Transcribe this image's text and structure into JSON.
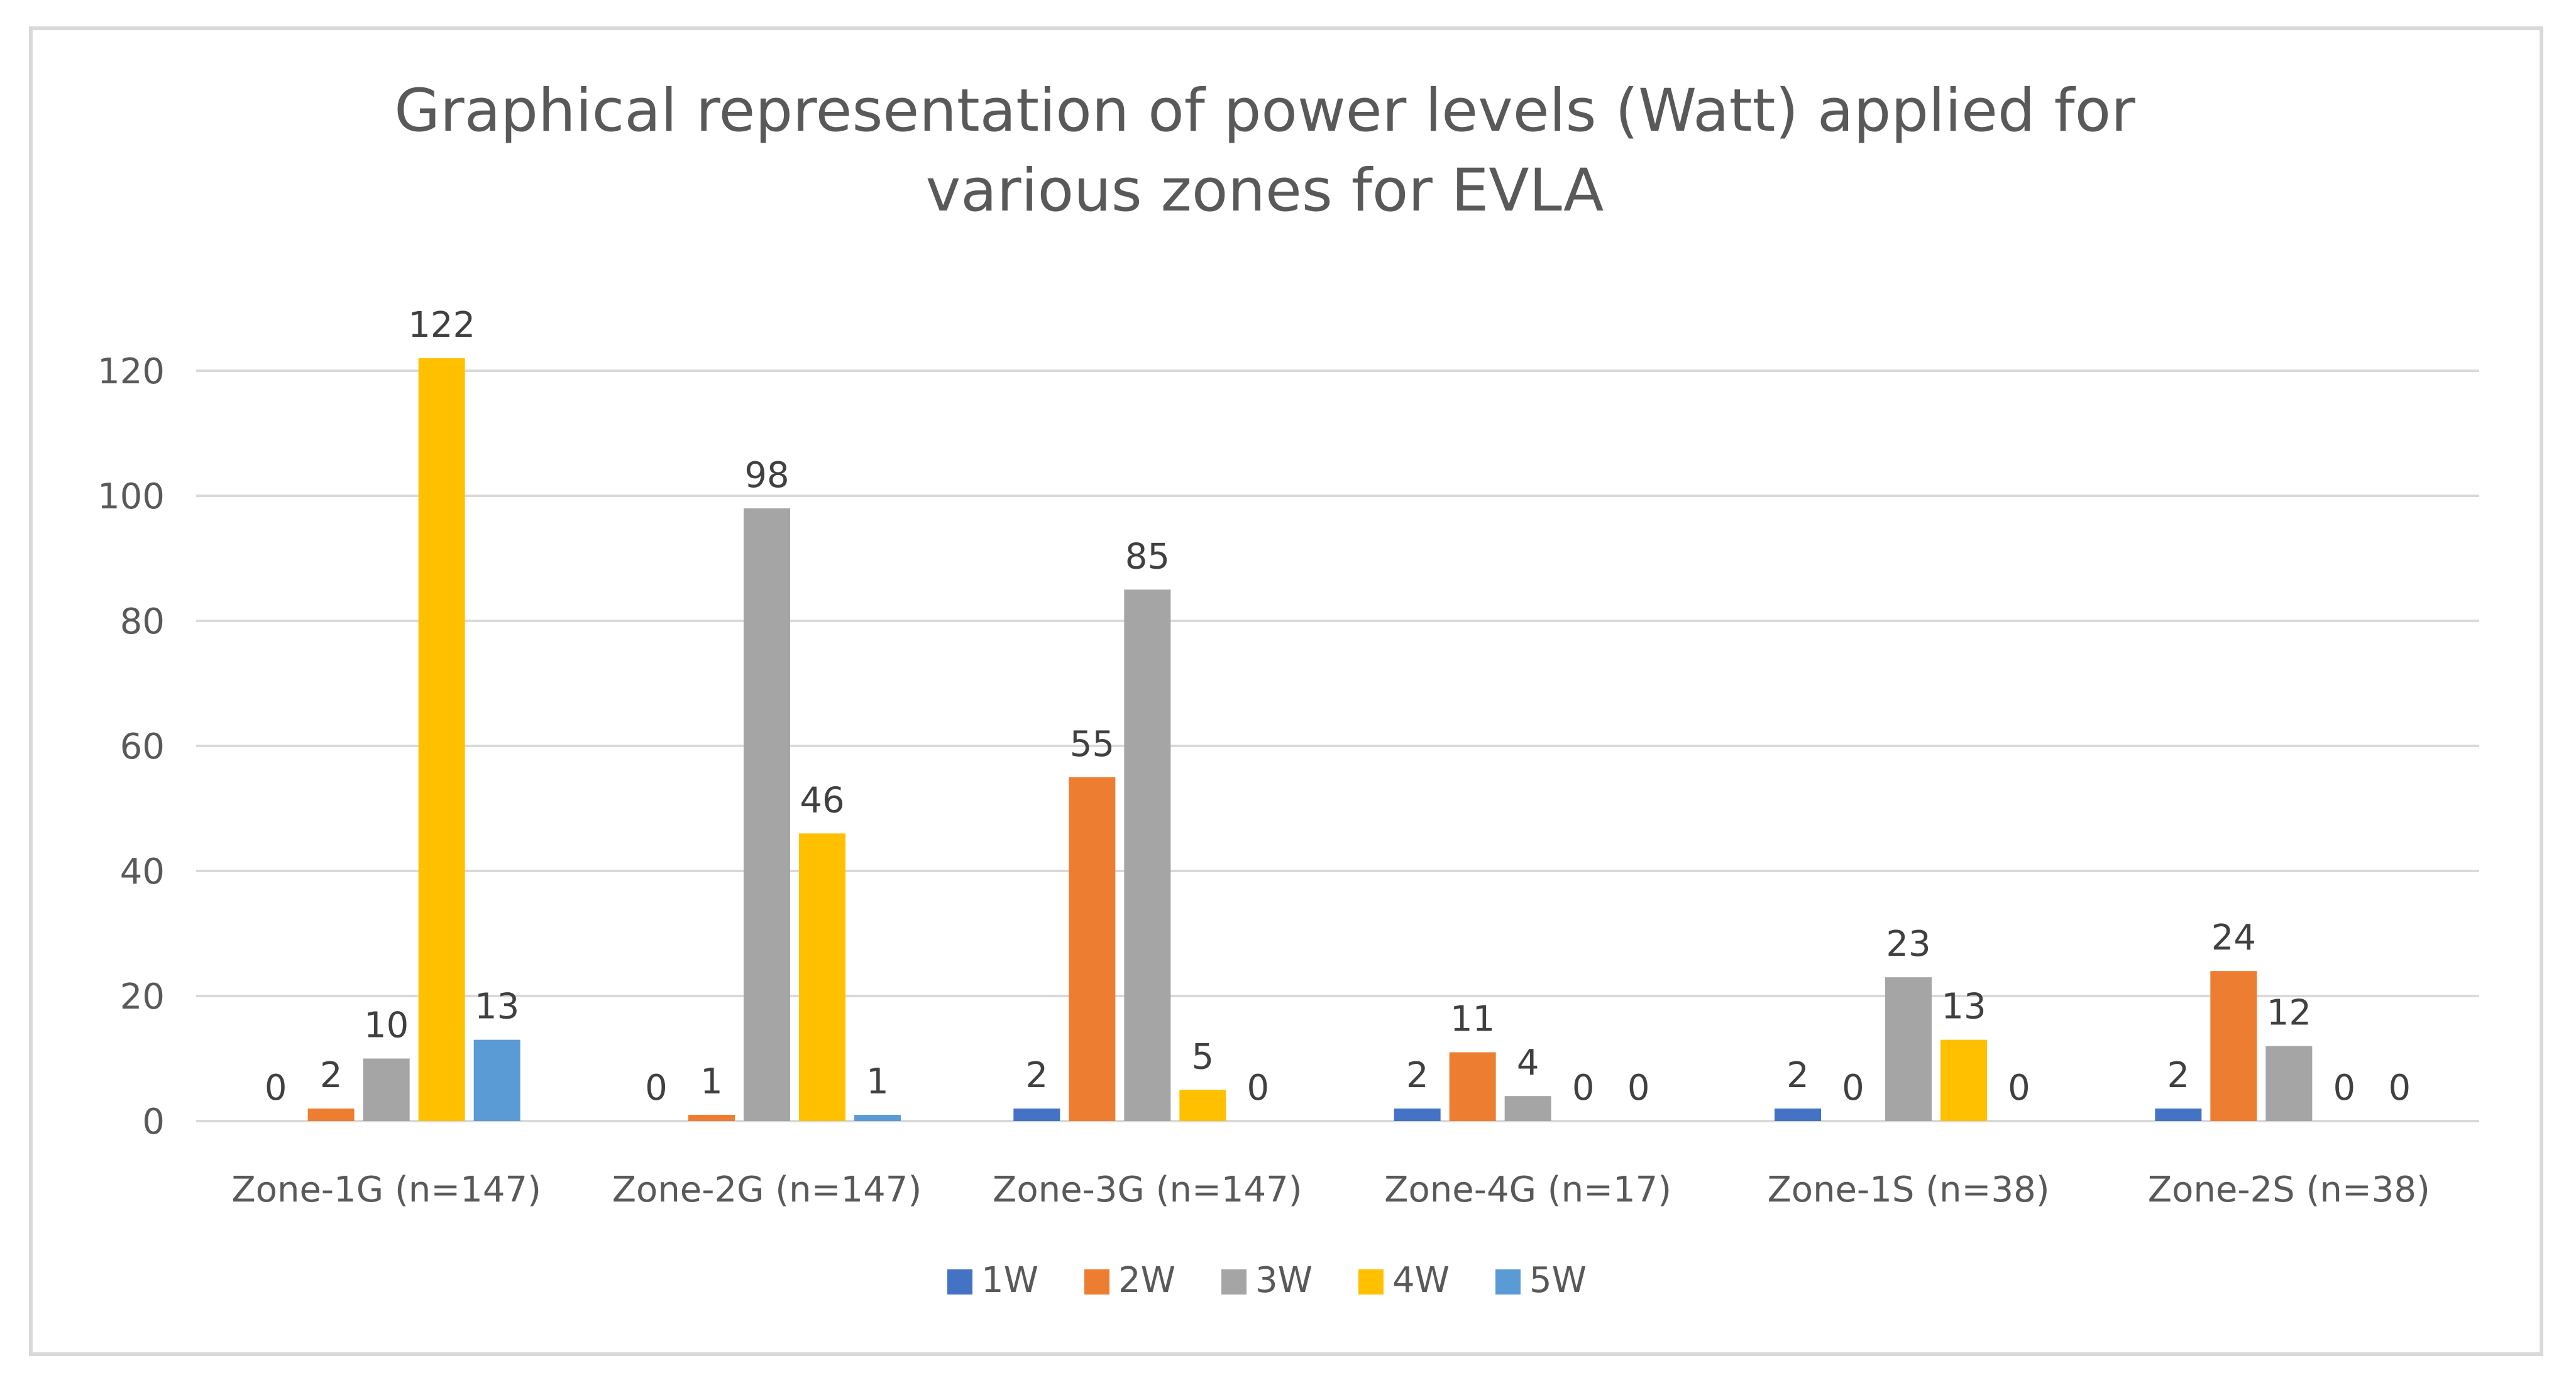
{
  "chart_data": {
    "type": "bar",
    "title": "Graphical representation of power levels (Watt) applied for various zones for EVLA",
    "title_lines": [
      "Graphical representation of power levels (Watt) applied for",
      "various zones for EVLA"
    ],
    "xlabel": "",
    "ylabel": "",
    "ylim": [
      0,
      120
    ],
    "yticks": [
      0,
      20,
      40,
      60,
      80,
      100,
      120
    ],
    "grid": true,
    "legend_position": "bottom",
    "categories": [
      "Zone-1G (n=147)",
      "Zone-2G (n=147)",
      "Zone-3G (n=147)",
      "Zone-4G (n=17)",
      "Zone-1S (n=38)",
      "Zone-2S (n=38)"
    ],
    "series": [
      {
        "name": "1W",
        "color": "#4472c4",
        "values": [
          0,
          0,
          2,
          2,
          2,
          2
        ],
        "labels": [
          null,
          null,
          "2",
          "2",
          "2",
          "2"
        ]
      },
      {
        "name": "2W",
        "color": "#ed7d31",
        "values": [
          2,
          1,
          55,
          11,
          0,
          24
        ],
        "labels": [
          "2",
          "1",
          "55",
          "11",
          "0",
          "24"
        ]
      },
      {
        "name": "3W",
        "color": "#a5a5a5",
        "values": [
          10,
          98,
          85,
          4,
          23,
          12
        ],
        "labels": [
          "10",
          "98",
          "85",
          "4",
          "23",
          "12"
        ]
      },
      {
        "name": "4W",
        "color": "#ffc000",
        "values": [
          122,
          46,
          5,
          0,
          13,
          0
        ],
        "labels": [
          "122",
          "46",
          "5",
          "0",
          "13",
          "0"
        ]
      },
      {
        "name": "5W",
        "color": "#5b9bd5",
        "values": [
          13,
          1,
          0,
          0,
          0,
          0
        ],
        "labels": [
          "13",
          "1",
          "0",
          "0",
          "0",
          "0"
        ]
      }
    ],
    "extra_labels": [
      {
        "category": 0,
        "series": 0,
        "text": "0"
      },
      {
        "category": 1,
        "series": 0,
        "text": "0"
      }
    ]
  }
}
